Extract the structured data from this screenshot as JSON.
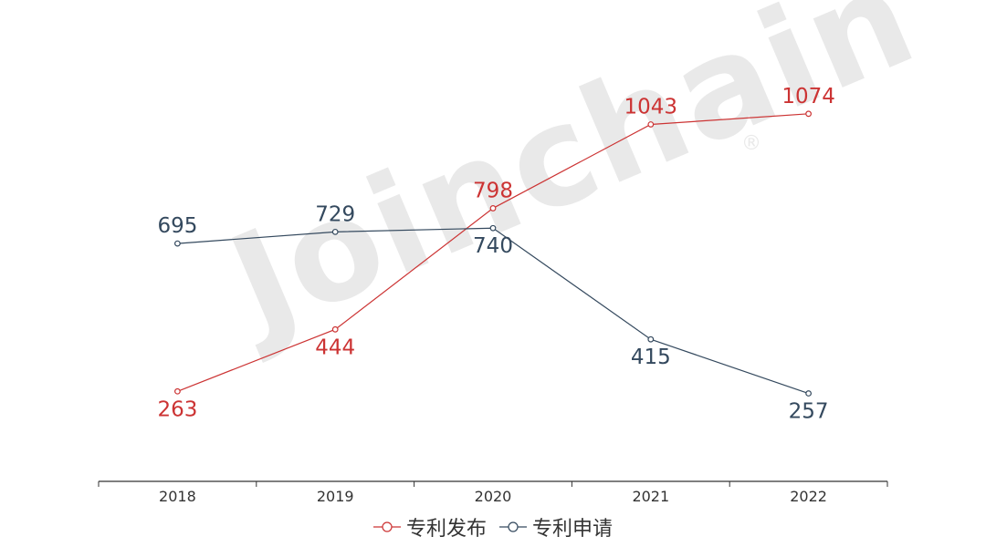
{
  "chart_data": {
    "type": "line",
    "categories": [
      "2018",
      "2019",
      "2020",
      "2021",
      "2022"
    ],
    "series": [
      {
        "name": "专利发布",
        "color": "#cc3333",
        "values": [
          263,
          444,
          798,
          1043,
          1074
        ]
      },
      {
        "name": "专利申请",
        "color": "#34495e",
        "values": [
          695,
          729,
          740,
          415,
          257
        ]
      }
    ],
    "ylim": [
      0,
      1300
    ],
    "grid": false,
    "legend_position": "bottom-center"
  },
  "watermark": {
    "text": "Joinchain",
    "mark": "®"
  }
}
